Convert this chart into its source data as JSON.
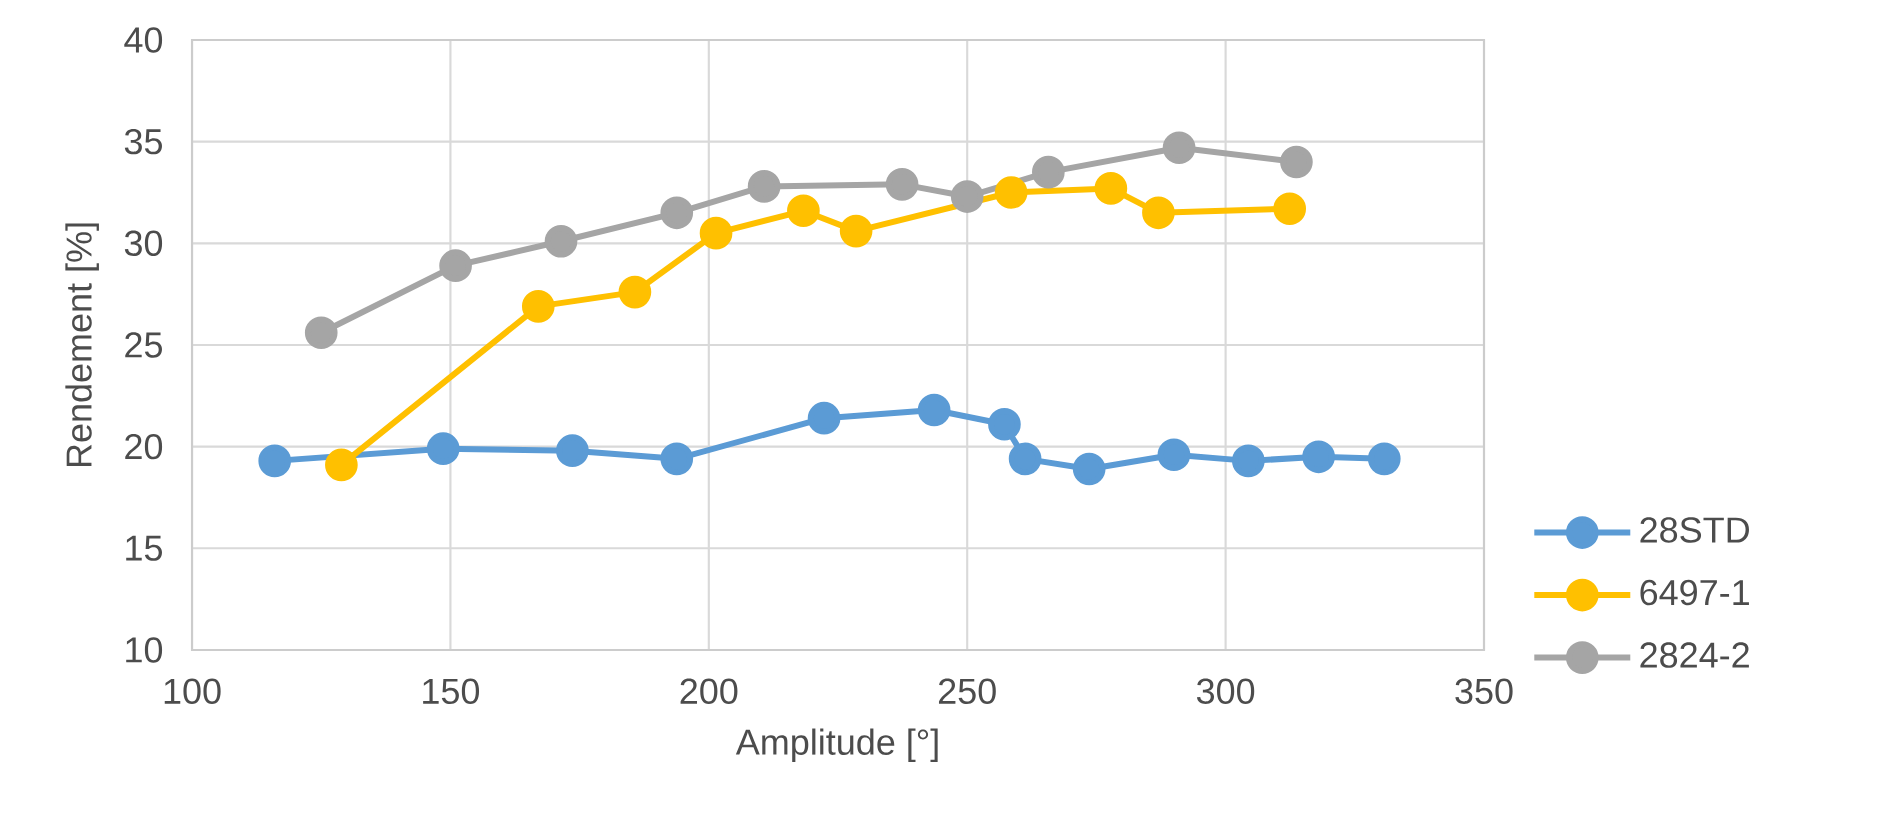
{
  "chart_data": {
    "type": "line",
    "xlabel": "Amplitude [°]",
    "ylabel": "Rendement [%]",
    "xlim": [
      100,
      350
    ],
    "xticks": [
      100,
      150,
      200,
      250,
      300,
      350
    ],
    "ylim": [
      10,
      40
    ],
    "yticks": [
      10,
      15,
      20,
      25,
      30,
      35,
      40
    ],
    "grid": true,
    "legend": "right",
    "marker": "circle",
    "line_style": "solid",
    "series": [
      {
        "name": "28STD",
        "color": "#5b9bd5",
        "x": [
          116.0,
          148.6,
          173.6,
          193.8,
          222.3,
          243.6,
          257.2,
          261.2,
          273.6,
          290.0,
          304.4,
          318.0,
          330.7
        ],
        "values": [
          19.3,
          19.9,
          19.8,
          19.4,
          21.4,
          21.8,
          21.1,
          19.4,
          18.9,
          19.6,
          19.3,
          19.5,
          19.4
        ]
      },
      {
        "name": "6497-1",
        "color": "#ffc000",
        "x": [
          128.9,
          167.0,
          185.7,
          201.4,
          218.3,
          228.5,
          258.5,
          277.8,
          287.0,
          312.4
        ],
        "values": [
          19.1,
          26.9,
          27.6,
          30.5,
          31.6,
          30.6,
          32.5,
          32.7,
          31.5,
          31.7
        ]
      },
      {
        "name": "2824-2",
        "color": "#a5a5a5",
        "x": [
          125.0,
          151.0,
          171.4,
          193.8,
          210.7,
          237.4,
          250.0,
          265.7,
          291.0,
          313.7
        ],
        "values": [
          25.6,
          28.9,
          30.1,
          31.5,
          32.8,
          32.9,
          32.3,
          33.5,
          34.7,
          34.0
        ]
      }
    ]
  }
}
